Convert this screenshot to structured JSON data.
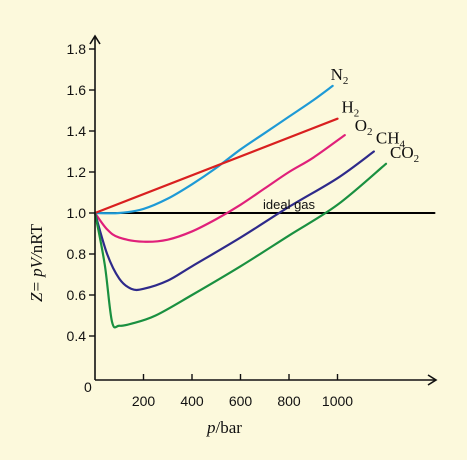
{
  "chart_data": {
    "type": "line",
    "title": "",
    "xlabel_italic": "p",
    "xlabel_rest": "/bar",
    "ylabel_main": "Z= pV/",
    "ylabel_rest": "nRT",
    "origin_label": "0",
    "xlim": [
      0,
      1400
    ],
    "ylim": [
      0.2,
      1.9
    ],
    "xticks": [
      200,
      400,
      600,
      800,
      1000
    ],
    "yticks": [
      0.4,
      0.6,
      0.8,
      1.0,
      1.2,
      1.4,
      1.6,
      1.8
    ],
    "ytick_labels": [
      "0.4",
      "0.6",
      "0.8",
      "1.0",
      "1.2",
      "1.4",
      "1.6",
      "1.8"
    ],
    "xtick_labels": [
      "200",
      "400",
      "600",
      "800",
      "1000"
    ],
    "annotation": "ideal gas",
    "series": [
      {
        "name": "ideal gas",
        "color": "#000000",
        "points": [
          [
            0,
            1.0
          ],
          [
            1400,
            1.0
          ]
        ]
      },
      {
        "name": "N2",
        "label_main": "N",
        "label_sub": "2",
        "color": "#1e9ad6",
        "points": [
          [
            0,
            1.0
          ],
          [
            100,
            1.0
          ],
          [
            200,
            1.02
          ],
          [
            300,
            1.07
          ],
          [
            400,
            1.14
          ],
          [
            500,
            1.22
          ],
          [
            600,
            1.31
          ],
          [
            700,
            1.39
          ],
          [
            800,
            1.47
          ],
          [
            900,
            1.55
          ],
          [
            980,
            1.62
          ]
        ]
      },
      {
        "name": "H2",
        "label_main": "H",
        "label_sub": "2",
        "color": "#d92020",
        "points": [
          [
            0,
            1.0
          ],
          [
            1000,
            1.46
          ]
        ]
      },
      {
        "name": "O2",
        "label_main": "O",
        "label_sub": "2",
        "color": "#e0207a",
        "points": [
          [
            0,
            1.0
          ],
          [
            50,
            0.92
          ],
          [
            100,
            0.88
          ],
          [
            200,
            0.86
          ],
          [
            300,
            0.87
          ],
          [
            400,
            0.91
          ],
          [
            500,
            0.97
          ],
          [
            600,
            1.04
          ],
          [
            700,
            1.12
          ],
          [
            800,
            1.2
          ],
          [
            900,
            1.27
          ],
          [
            1030,
            1.38
          ]
        ]
      },
      {
        "name": "CH4",
        "label_main": "CH",
        "label_sub": "4",
        "color": "#2e2a8a",
        "points": [
          [
            0,
            1.0
          ],
          [
            50,
            0.8
          ],
          [
            100,
            0.68
          ],
          [
            150,
            0.63
          ],
          [
            200,
            0.63
          ],
          [
            300,
            0.67
          ],
          [
            400,
            0.74
          ],
          [
            600,
            0.88
          ],
          [
            800,
            1.03
          ],
          [
            1000,
            1.17
          ],
          [
            1150,
            1.3
          ]
        ]
      },
      {
        "name": "CO2",
        "label_main": "CO",
        "label_sub": "2",
        "color": "#1a9040",
        "points": [
          [
            0,
            1.0
          ],
          [
            40,
            0.75
          ],
          [
            70,
            0.47
          ],
          [
            100,
            0.45
          ],
          [
            150,
            0.46
          ],
          [
            250,
            0.5
          ],
          [
            400,
            0.6
          ],
          [
            600,
            0.74
          ],
          [
            800,
            0.89
          ],
          [
            1000,
            1.04
          ],
          [
            1200,
            1.24
          ]
        ]
      }
    ]
  }
}
